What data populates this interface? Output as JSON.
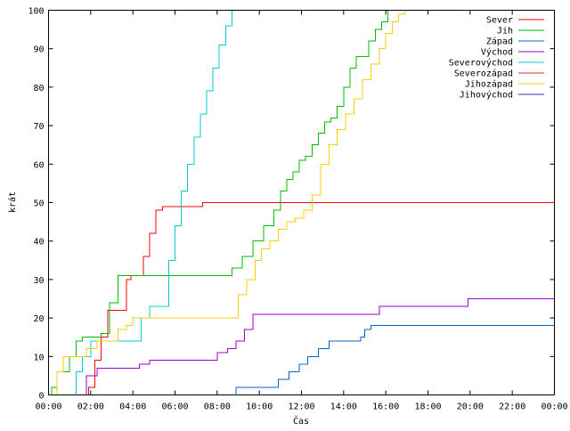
{
  "chart_data": {
    "type": "line",
    "title": "",
    "xlabel": "Čas",
    "ylabel": "krát",
    "xlim": [
      0,
      24
    ],
    "ylim": [
      0,
      100
    ],
    "x_tick_values": [
      0,
      2,
      4,
      6,
      8,
      10,
      12,
      14,
      16,
      18,
      20,
      22,
      24
    ],
    "x_tick_labels": [
      "00:00",
      "02:00",
      "04:00",
      "06:00",
      "08:00",
      "10:00",
      "12:00",
      "14:00",
      "16:00",
      "18:00",
      "20:00",
      "22:00",
      "00:00"
    ],
    "y_tick_values": [
      0,
      10,
      20,
      30,
      40,
      50,
      60,
      70,
      80,
      90,
      100
    ],
    "y_tick_labels": [
      "0",
      "10",
      "20",
      "30",
      "40",
      "50",
      "60",
      "70",
      "80",
      "90",
      "100"
    ],
    "grid": false,
    "legend_position": "top-right",
    "series": [
      {
        "name": "Sever",
        "color": "#ff0000",
        "x": [
          0,
          1.5,
          1.9,
          2.2,
          2.5,
          2.8,
          3.1,
          3.4,
          3.7,
          3.9,
          4.2,
          4.5,
          4.8,
          5.1,
          5.4,
          7.0,
          7.3,
          24
        ],
        "y": [
          0,
          0,
          2,
          9,
          15,
          22,
          22,
          22,
          30,
          31,
          31,
          36,
          42,
          48,
          49,
          49,
          50,
          50
        ]
      },
      {
        "name": "Jih",
        "color": "#00bb00",
        "x": [
          0,
          0.15,
          0.4,
          0.7,
          1.0,
          1.3,
          1.6,
          2.0,
          2.5,
          2.9,
          3.3,
          3.8,
          4.2,
          8.3,
          8.7,
          9.2,
          9.7,
          10.2,
          10.7,
          11.0,
          11.3,
          11.6,
          11.9,
          12.2,
          12.5,
          12.8,
          13.1,
          13.4,
          13.7,
          14.0,
          14.3,
          14.6,
          14.9,
          15.2,
          15.5,
          15.8,
          16.1,
          16.4,
          24
        ],
        "y": [
          0,
          2,
          6,
          6,
          10,
          14,
          15,
          15,
          16,
          24,
          31,
          31,
          31,
          31,
          33,
          36,
          40,
          44,
          48,
          53,
          56,
          58,
          61,
          62,
          65,
          68,
          71,
          72,
          75,
          80,
          85,
          88,
          88,
          92,
          95,
          97,
          100,
          100,
          100
        ]
      },
      {
        "name": "Západ",
        "color": "#0066cc",
        "x": [
          8.8,
          8.9,
          10.4,
          10.9,
          11.4,
          11.9,
          12.3,
          12.8,
          13.3,
          13.8,
          14.3,
          14.8,
          15.0,
          15.3,
          24
        ],
        "y": [
          0,
          2,
          2,
          4,
          6,
          8,
          10,
          12,
          14,
          14,
          14,
          15,
          17,
          18,
          18
        ]
      },
      {
        "name": "Východ",
        "color": "#9900cc",
        "x": [
          0,
          1.5,
          1.8,
          2.3,
          2.6,
          3.6,
          4.3,
          4.8,
          5.5,
          7.6,
          8.0,
          8.5,
          8.9,
          9.3,
          9.7,
          14.2,
          15.7,
          19.9,
          24
        ],
        "y": [
          0,
          0,
          5,
          7,
          7,
          7,
          8,
          9,
          9,
          9,
          11,
          12,
          14,
          17,
          21,
          21,
          23,
          25,
          25
        ]
      },
      {
        "name": "Severovýchod",
        "color": "#00cccc",
        "x": [
          0,
          1.0,
          1.3,
          1.6,
          2.0,
          2.5,
          3.0,
          3.5,
          4.1,
          4.4,
          4.8,
          5.4,
          5.7,
          6.0,
          6.3,
          6.6,
          6.9,
          7.2,
          7.5,
          7.8,
          8.1,
          8.4,
          8.7
        ],
        "y": [
          0,
          0,
          6,
          10,
          14,
          14,
          14,
          14,
          14,
          20,
          23,
          23,
          35,
          44,
          53,
          60,
          67,
          73,
          79,
          85,
          91,
          96,
          100
        ]
      },
      {
        "name": "Severozápad",
        "color": "#cc3333",
        "x": [
          0,
          24
        ],
        "y": [
          0,
          0
        ]
      },
      {
        "name": "Jihozápad",
        "color": "#ffcc00",
        "x": [
          0,
          0.4,
          0.7,
          1.0,
          1.4,
          1.8,
          2.3,
          2.9,
          3.3,
          3.7,
          4.0,
          4.4,
          5.0,
          8.4,
          9.0,
          9.4,
          9.8,
          10.1,
          10.5,
          10.9,
          11.3,
          11.7,
          12.1,
          12.5,
          12.9,
          13.3,
          13.7,
          14.1,
          14.5,
          14.9,
          15.3,
          15.7,
          16.0,
          16.3,
          16.6,
          16.9
        ],
        "y": [
          0,
          6,
          10,
          10,
          10,
          12,
          14,
          14,
          17,
          18,
          20,
          20,
          20,
          20,
          26,
          30,
          35,
          38,
          40,
          43,
          45,
          46,
          48,
          52,
          60,
          65,
          69,
          73,
          77,
          82,
          86,
          90,
          94,
          97,
          99,
          100
        ]
      },
      {
        "name": "Jihovýchod",
        "color": "#333399",
        "x": [
          0,
          24
        ],
        "y": [
          0,
          0
        ]
      }
    ]
  }
}
